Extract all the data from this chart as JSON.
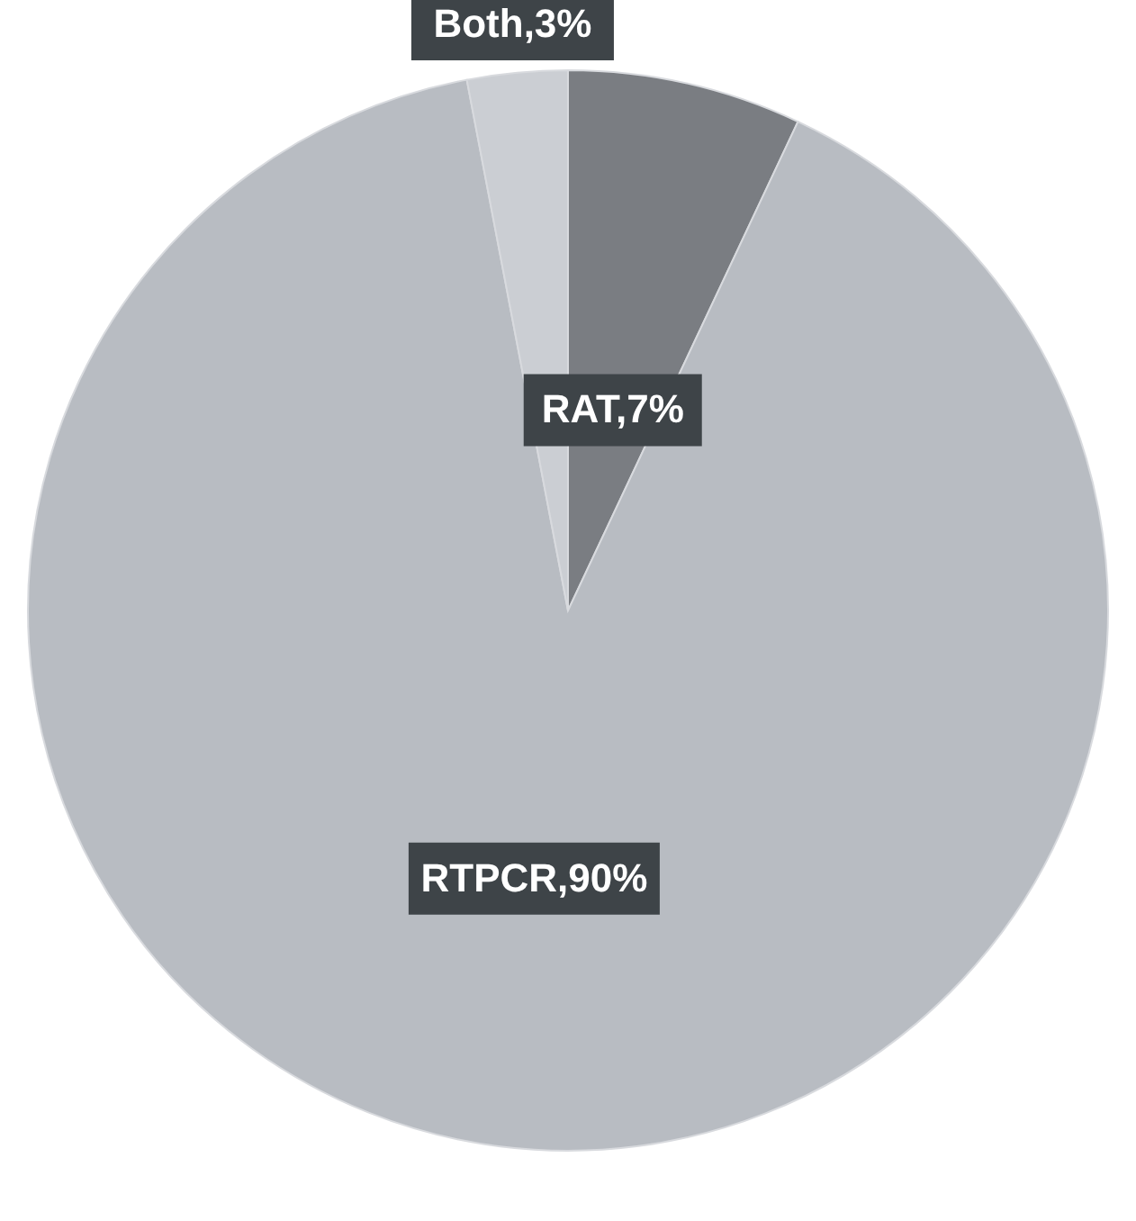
{
  "chart_data": {
    "type": "pie",
    "categories": [
      "RAT",
      "RTPCR",
      "Both"
    ],
    "values": [
      7,
      90,
      3
    ],
    "colors": [
      "#7a7d82",
      "#b8bcc2",
      "#cbced3"
    ],
    "value_labels": [
      "7%",
      "90%",
      "3%"
    ]
  }
}
